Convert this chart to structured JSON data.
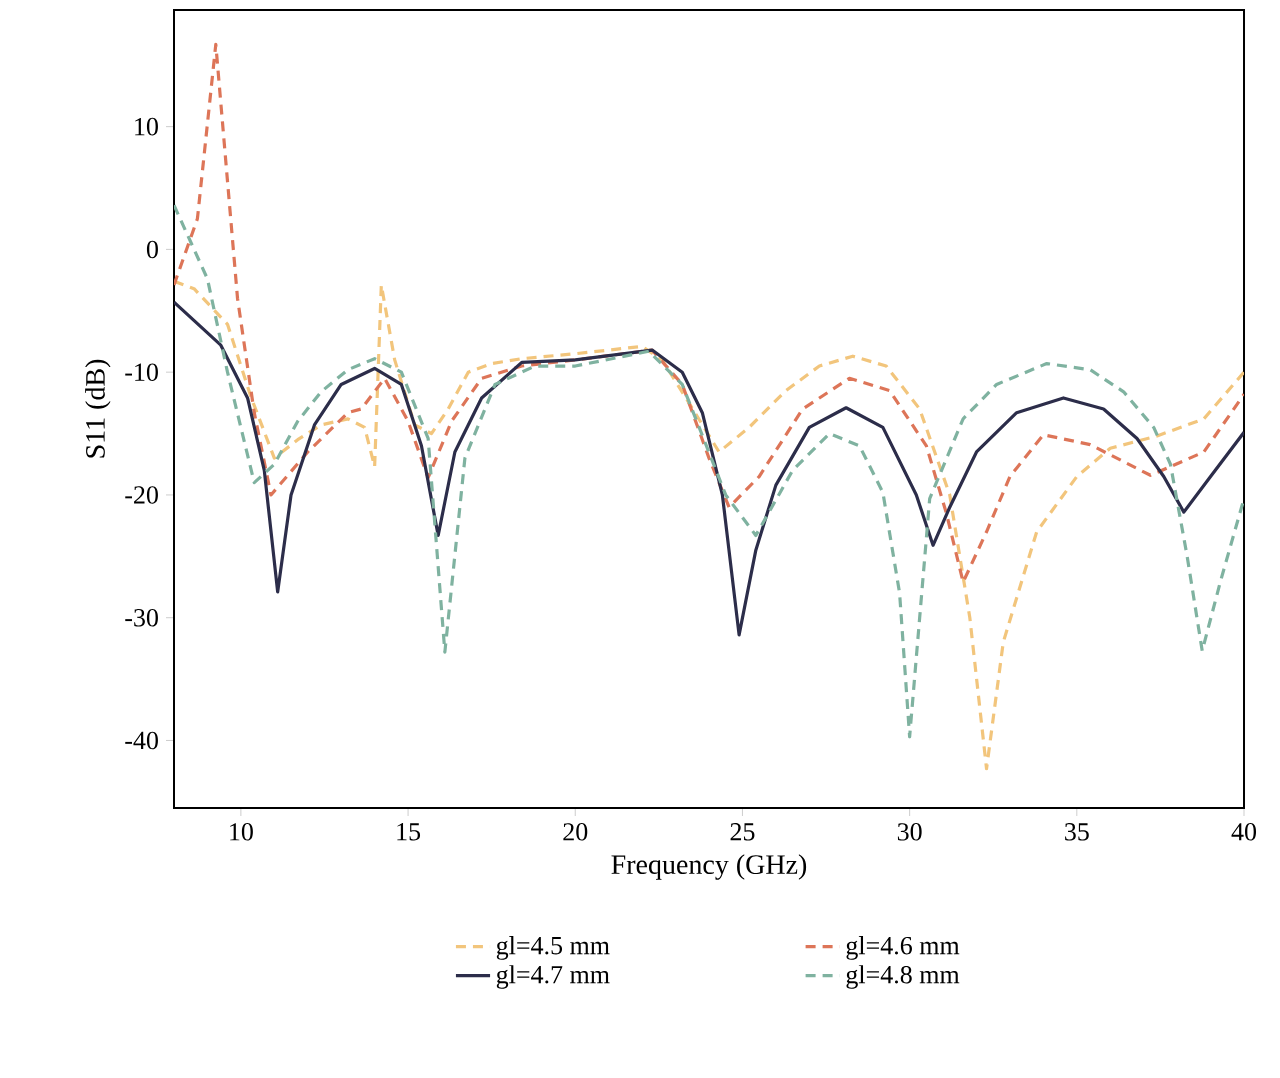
{
  "chart_data": {
    "type": "line",
    "xlabel": "Frequency (GHz)",
    "ylabel": "S11 (dB)",
    "xlim": [
      8,
      40
    ],
    "ylim": [
      -45.5,
      19.5
    ],
    "xticks": [
      10,
      15,
      20,
      25,
      30,
      35,
      40
    ],
    "yticks": [
      -40,
      -30,
      -20,
      -10,
      0,
      10
    ],
    "grid": false,
    "legend": "bottom",
    "marker": "none",
    "series": [
      {
        "name": "gl=4.5 mm",
        "color": "#f2c57c",
        "line_style": "dashed",
        "x": [
          8,
          8.6,
          9.6,
          10.3,
          11,
          11.7,
          12.4,
          13.2,
          13.7,
          14.0,
          14.2,
          14.6,
          15.2,
          15.7,
          16.2,
          16.8,
          17.5,
          18.4,
          20,
          22,
          22.6,
          23.4,
          24.3,
          25.2,
          26.3,
          27.3,
          28.3,
          29.3,
          30.3,
          31.2,
          31.8,
          32.3,
          32.8,
          33.8,
          35,
          36,
          37.4,
          38.8,
          40
        ],
        "values": [
          -2.6,
          -3.2,
          -6.1,
          -12,
          -17,
          -15.5,
          -14.3,
          -13.8,
          -14.5,
          -17.7,
          -2.9,
          -9,
          -14.3,
          -15,
          -13,
          -10,
          -9.3,
          -8.9,
          -8.5,
          -7.9,
          -9,
          -12.5,
          -16.5,
          -14.5,
          -11.5,
          -9.5,
          -8.7,
          -9.5,
          -13,
          -20,
          -30,
          -42.3,
          -32,
          -23,
          -18.5,
          -16.2,
          -15.2,
          -13.8,
          -10
        ]
      },
      {
        "name": "gl=4.6 mm",
        "color": "#dd7558",
        "line_style": "dashed",
        "x": [
          8,
          8.7,
          9.25,
          9.9,
          10.4,
          10.9,
          12,
          13.2,
          13.6,
          14.3,
          15,
          15.6,
          16.3,
          17.2,
          18.4,
          20,
          22.3,
          23.2,
          24,
          24.6,
          25.5,
          26.8,
          28.2,
          29.4,
          30.5,
          31.1,
          31.6,
          32.3,
          33,
          34,
          35.4,
          37.2,
          38.8,
          40
        ],
        "values": [
          -2.9,
          2.5,
          16.7,
          -4,
          -13.3,
          -20,
          -16.5,
          -13.3,
          -13,
          -10.5,
          -14,
          -18.6,
          -14,
          -10.5,
          -9.5,
          -9,
          -8.2,
          -11,
          -17,
          -21,
          -18.5,
          -13,
          -10.5,
          -11.5,
          -16,
          -21.5,
          -27.1,
          -23,
          -18.5,
          -15.1,
          -15.9,
          -18.4,
          -16.5,
          -11.8
        ]
      },
      {
        "name": "gl=4.7 mm",
        "color": "#2c2d4a",
        "line_style": "solid",
        "x": [
          8,
          9.4,
          10.2,
          10.7,
          11.1,
          11.5,
          12.2,
          13,
          14,
          14.8,
          15.4,
          15.9,
          16.4,
          17.2,
          18.4,
          20,
          22.3,
          23.2,
          23.8,
          24.4,
          24.9,
          25.4,
          26,
          27,
          28.1,
          29.2,
          30.2,
          30.7,
          31.2,
          32,
          33.2,
          34.6,
          35.8,
          36.8,
          37.6,
          38.2,
          39,
          40
        ],
        "values": [
          -4.3,
          -7.8,
          -12.1,
          -18,
          -27.9,
          -20,
          -14.3,
          -11,
          -9.7,
          -11,
          -16,
          -23.3,
          -16.5,
          -12.1,
          -9.2,
          -9,
          -8.2,
          -10,
          -13.3,
          -20,
          -31.4,
          -24.5,
          -19.2,
          -14.5,
          -12.9,
          -14.5,
          -20,
          -24.1,
          -21,
          -16.5,
          -13.3,
          -12.1,
          -13,
          -15.4,
          -18.5,
          -21.4,
          -18.5,
          -14.9
        ]
      },
      {
        "name": "gl=4.8 mm",
        "color": "#7fb2a0",
        "line_style": "dashed",
        "x": [
          8,
          9,
          9.6,
          10.4,
          11,
          11.7,
          12.4,
          13.2,
          14,
          14.8,
          15.6,
          16.1,
          16.7,
          17.6,
          18.8,
          20,
          22.2,
          23.2,
          24.5,
          25.4,
          26.5,
          27.6,
          28.5,
          29.2,
          29.7,
          30,
          30.3,
          30.6,
          31.6,
          32.6,
          34.1,
          35.4,
          36.4,
          37.3,
          37.8,
          38.3,
          38.75,
          39.3,
          40
        ],
        "values": [
          3.6,
          -2.4,
          -10,
          -19,
          -17.5,
          -14,
          -11.6,
          -9.8,
          -8.9,
          -10,
          -15.4,
          -32.8,
          -17,
          -11,
          -9.5,
          -9.5,
          -8.3,
          -11,
          -20,
          -23.3,
          -18,
          -15,
          -16,
          -19.8,
          -28,
          -39.7,
          -30,
          -20.3,
          -13.8,
          -11,
          -9.3,
          -9.8,
          -11.6,
          -14.5,
          -17.5,
          -25,
          -32.7,
          -27,
          -20.3
        ]
      }
    ]
  }
}
